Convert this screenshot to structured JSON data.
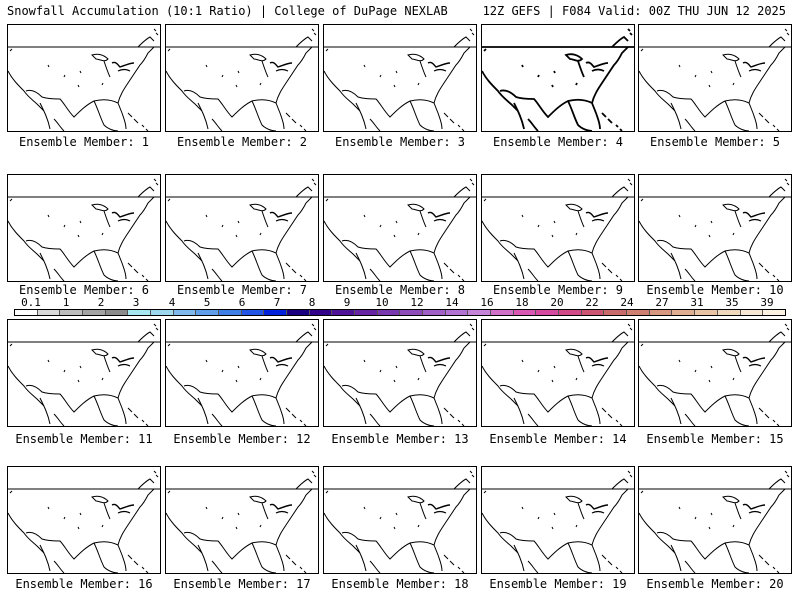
{
  "header": {
    "left_title": "Snowfall Accumulation (10:1 Ratio) | College of DuPage NEXLAB",
    "right_title": "12Z GEFS | F084 Valid: 00Z THU JUN 12 2025"
  },
  "panels": [
    {
      "label": "Ensemble Member: 1"
    },
    {
      "label": "Ensemble Member: 2"
    },
    {
      "label": "Ensemble Member: 3"
    },
    {
      "label": "Ensemble Member: 4"
    },
    {
      "label": "Ensemble Member: 5"
    },
    {
      "label": "Ensemble Member: 6"
    },
    {
      "label": "Ensemble Member: 7"
    },
    {
      "label": "Ensemble Member: 8"
    },
    {
      "label": "Ensemble Member: 9"
    },
    {
      "label": "Ensemble Member: 10"
    },
    {
      "label": "Ensemble Member: 11"
    },
    {
      "label": "Ensemble Member: 12"
    },
    {
      "label": "Ensemble Member: 13"
    },
    {
      "label": "Ensemble Member: 14"
    },
    {
      "label": "Ensemble Member: 15"
    },
    {
      "label": "Ensemble Member: 16"
    },
    {
      "label": "Ensemble Member: 17"
    },
    {
      "label": "Ensemble Member: 18"
    },
    {
      "label": "Ensemble Member: 19"
    },
    {
      "label": "Ensemble Member: 20"
    }
  ],
  "colorbar": {
    "ticks": [
      "0.1",
      "1",
      "2",
      "3",
      "4",
      "5",
      "6",
      "7",
      "8",
      "9",
      "10",
      "12",
      "14",
      "16",
      "18",
      "20",
      "22",
      "24",
      "27",
      "31",
      "35",
      "39"
    ],
    "colors": [
      "#ffffff",
      "#d9d9d9",
      "#bdbdbd",
      "#a3a3a3",
      "#8c8c8c",
      "#a7e8f0",
      "#9ed8ee",
      "#7fb8ec",
      "#5f9ee8",
      "#3f7ee6",
      "#2255e6",
      "#0022dd",
      "#1a0080",
      "#33008a",
      "#4d1296",
      "#6624a2",
      "#7a38ae",
      "#8e4cba",
      "#a060c6",
      "#b272d2",
      "#c484d8",
      "#d070c8",
      "#d858b4",
      "#d44a9e",
      "#d04a88",
      "#cc5574",
      "#c86a6a",
      "#d08070",
      "#d89880",
      "#e0ae90",
      "#e8c4a4",
      "#f0d8bc",
      "#f6e8d4",
      "#fbf2e4"
    ]
  }
}
